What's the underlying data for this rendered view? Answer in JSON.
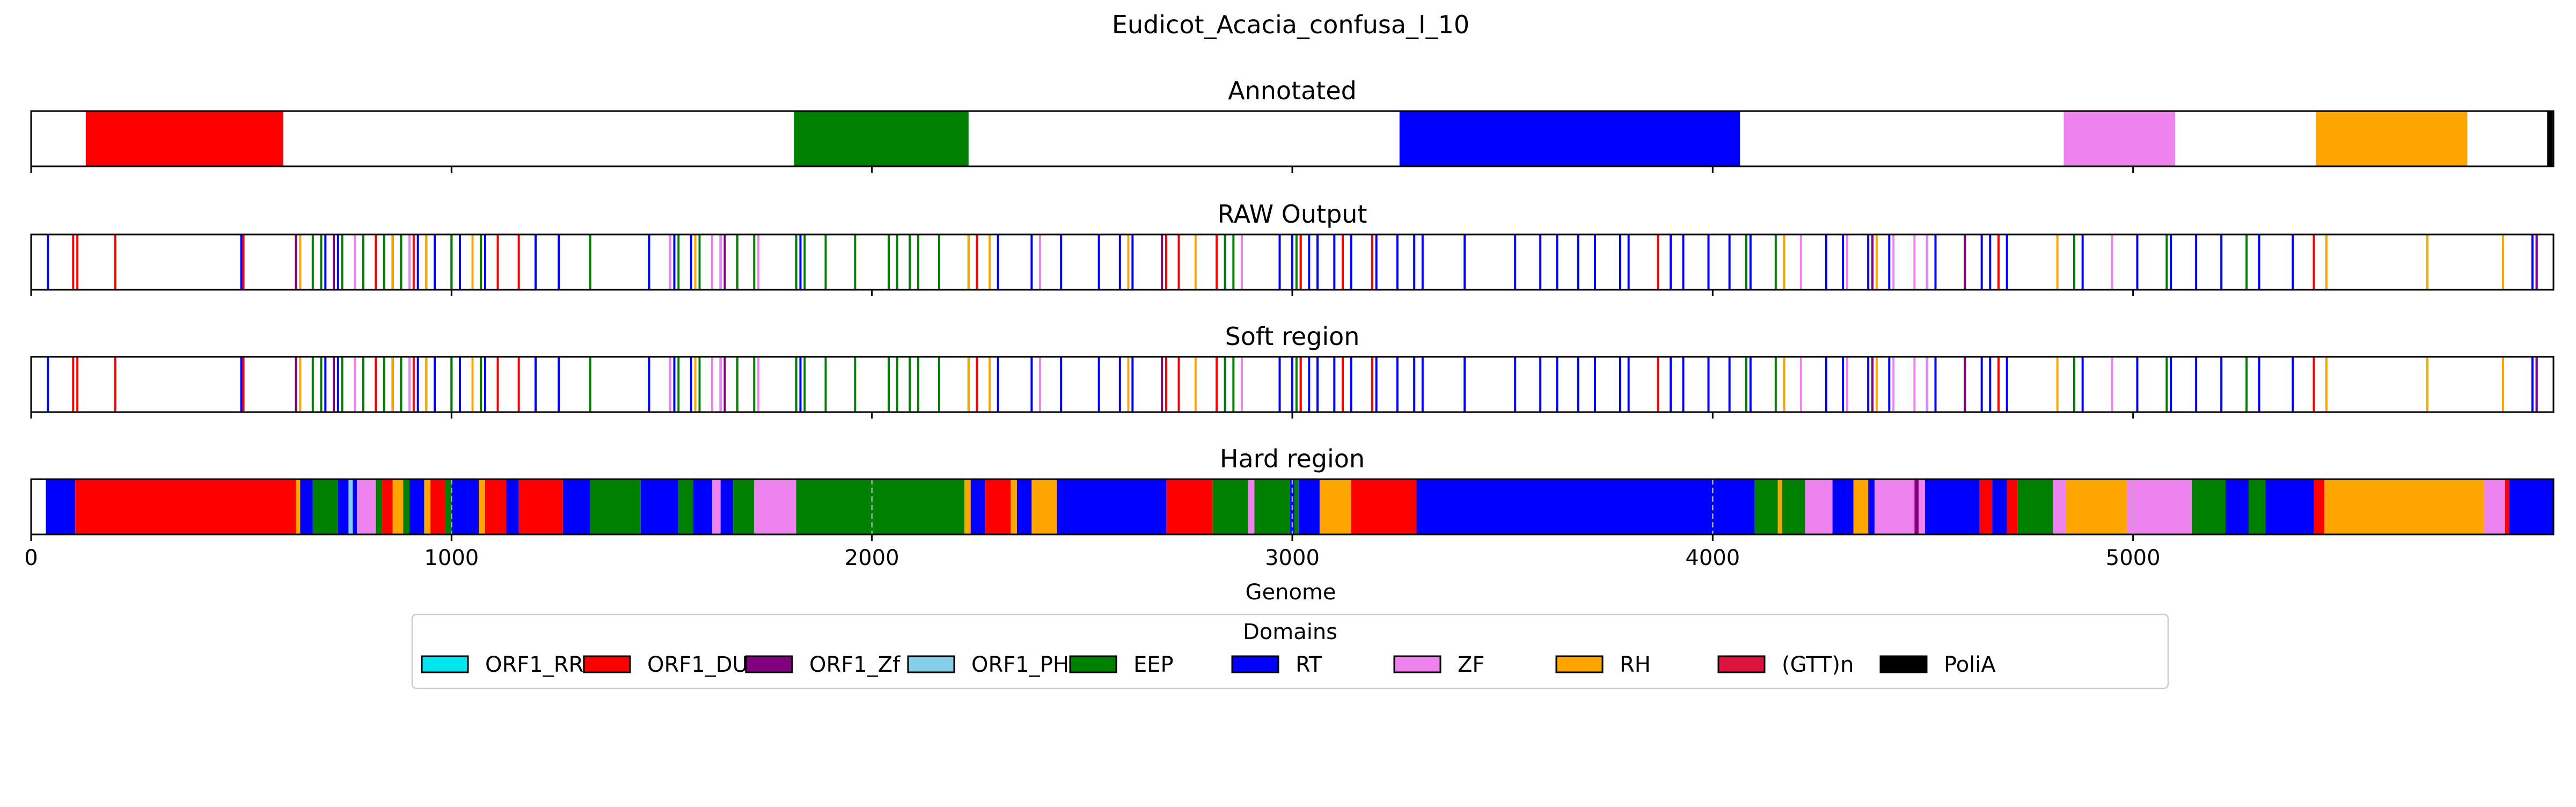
{
  "chart_data": {
    "type": "genome_track",
    "title": "Eudicot_Acacia_confusa_I_10",
    "xlabel": "Genome",
    "xlim": [
      0,
      6000
    ],
    "xticks": [
      "0",
      "1000",
      "2000",
      "3000",
      "4000",
      "5000"
    ],
    "tick_values": [
      0,
      1000,
      2000,
      3000,
      4000,
      5000
    ],
    "legend": {
      "title": "Domains",
      "placement": "bottom-center",
      "entries": [
        {
          "label": "ORF1_RRM",
          "color": "#00e5ee"
        },
        {
          "label": "ORF1_DUF",
          "color": "#ff0000"
        },
        {
          "label": "ORF1_Zf",
          "color": "#800080"
        },
        {
          "label": "ORF1_PHA",
          "color": "#87ceeb"
        },
        {
          "label": "EEP",
          "color": "#008000"
        },
        {
          "label": "RT",
          "color": "#0000ff"
        },
        {
          "label": "ZF",
          "color": "#ee82ee"
        },
        {
          "label": "RH",
          "color": "#ffa500"
        },
        {
          "label": "(GTT)n",
          "color": "#dc143c"
        },
        {
          "label": "PoliA",
          "color": "#000000"
        }
      ]
    },
    "panels": [
      {
        "title": "Annotated",
        "show_ticks": true,
        "segments": [
          {
            "domain": "ORF1_DUF",
            "start": 130,
            "end": 600
          },
          {
            "domain": "EEP",
            "start": 1815,
            "end": 2230
          },
          {
            "domain": "RT",
            "start": 3255,
            "end": 4065
          },
          {
            "domain": "ZF",
            "start": 4835,
            "end": 5100
          },
          {
            "domain": "RH",
            "start": 5435,
            "end": 5795
          },
          {
            "domain": "PoliA",
            "start": 5985,
            "end": 5998
          }
        ]
      },
      {
        "title": "RAW Output",
        "show_ticks": true,
        "lines": [
          {
            "domain": "RT",
            "positions": [
              40,
              500,
              700,
              730,
              860,
              880,
              900,
              920,
              960,
              1020,
              1050,
              1080,
              1200,
              1255,
              1470,
              1520,
              1530,
              1570,
              1640,
              1830,
              2250,
              2300,
              2380,
              2450,
              2540,
              2590,
              2620,
              2840,
              2970,
              3000,
              3020,
              3040,
              3060,
              3100,
              3140,
              3200,
              3250,
              3290,
              3310,
              3410,
              3530,
              3590,
              3630,
              3680,
              3720,
              3780,
              3800,
              3900,
              3930,
              3990,
              4040,
              4090,
              4170,
              4270,
              4310,
              4370,
              4420,
              4510,
              4530,
              4640,
              4660,
              4700,
              4880,
              5010,
              5090,
              5150,
              5210,
              5300,
              5380,
              5430,
              5950,
              5960
            ]
          },
          {
            "domain": "ORF1_DUF",
            "positions": [
              100,
              110,
              200,
              505,
              720,
              820,
              860,
              910,
              1000,
              1070,
              1110,
              1160,
              2250,
              2700,
              2730,
              2820,
              3020,
              3120,
              3190,
              3870,
              4680,
              5430
            ]
          },
          {
            "domain": "EEP",
            "positions": [
              670,
              690,
              740,
              790,
              840,
              880,
              900,
              940,
              1000,
              1070,
              1330,
              1540,
              1590,
              1680,
              1720,
              1820,
              1840,
              1890,
              1960,
              2040,
              2060,
              2090,
              2110,
              2160,
              2230,
              2840,
              2860,
              3010,
              4080,
              4150,
              4600,
              4860,
              5080,
              5270
            ]
          },
          {
            "domain": "ZF",
            "positions": [
              770,
              900,
              1520,
              1620,
              1640,
              1730,
              2400,
              2880,
              4210,
              4320,
              4430,
              4480,
              4510,
              4950
            ]
          },
          {
            "domain": "RH",
            "positions": [
              640,
              860,
              940,
              1050,
              1580,
              2230,
              2280,
              2610,
              2770,
              4170,
              4390,
              4820,
              5460,
              5700,
              5880
            ]
          },
          {
            "domain": "ORF1_Zf",
            "positions": [
              630,
              720,
              1650,
              2690,
              4380,
              4600,
              5960
            ]
          }
        ]
      },
      {
        "title": "Soft region",
        "show_ticks": true,
        "lines": [
          {
            "domain": "RT",
            "positions": [
              40,
              500,
              700,
              730,
              860,
              880,
              900,
              920,
              960,
              1020,
              1050,
              1080,
              1200,
              1255,
              1470,
              1520,
              1530,
              1570,
              1640,
              1830,
              2250,
              2300,
              2380,
              2450,
              2540,
              2590,
              2620,
              2840,
              2970,
              3000,
              3020,
              3040,
              3060,
              3100,
              3140,
              3200,
              3250,
              3290,
              3310,
              3410,
              3530,
              3590,
              3630,
              3680,
              3720,
              3780,
              3800,
              3900,
              3930,
              3990,
              4040,
              4090,
              4170,
              4270,
              4310,
              4370,
              4420,
              4510,
              4530,
              4640,
              4660,
              4700,
              4880,
              5010,
              5090,
              5150,
              5210,
              5300,
              5380,
              5430,
              5950,
              5960
            ]
          },
          {
            "domain": "ORF1_DUF",
            "positions": [
              100,
              110,
              200,
              505,
              720,
              820,
              860,
              910,
              1000,
              1070,
              1110,
              1160,
              2250,
              2700,
              2730,
              2820,
              3020,
              3120,
              3190,
              3870,
              4680,
              5430
            ]
          },
          {
            "domain": "EEP",
            "positions": [
              670,
              690,
              740,
              790,
              840,
              880,
              900,
              940,
              1000,
              1070,
              1330,
              1540,
              1590,
              1680,
              1720,
              1820,
              1840,
              1890,
              1960,
              2040,
              2060,
              2090,
              2110,
              2160,
              2230,
              2840,
              2860,
              3010,
              4080,
              4150,
              4600,
              4860,
              5080,
              5270
            ]
          },
          {
            "domain": "ZF",
            "positions": [
              770,
              900,
              1520,
              1620,
              1640,
              1730,
              2400,
              2880,
              4210,
              4320,
              4430,
              4480,
              4510,
              4950
            ]
          },
          {
            "domain": "RH",
            "positions": [
              640,
              860,
              940,
              1050,
              1580,
              2230,
              2280,
              2610,
              2770,
              4170,
              4390,
              4820,
              5460,
              5700,
              5880
            ]
          },
          {
            "domain": "ORF1_Zf",
            "positions": [
              630,
              720,
              1650,
              2690,
              4380,
              4600,
              5960
            ]
          }
        ]
      },
      {
        "title": "Hard region",
        "show_ticks": true,
        "grid": "x",
        "segments": [
          {
            "domain": "RT",
            "start": 35,
            "end": 105
          },
          {
            "domain": "ORF1_DUF",
            "start": 105,
            "end": 630
          },
          {
            "domain": "RH",
            "start": 630,
            "end": 640
          },
          {
            "domain": "RT",
            "start": 640,
            "end": 670
          },
          {
            "domain": "EEP",
            "start": 670,
            "end": 730
          },
          {
            "domain": "RT",
            "start": 730,
            "end": 755
          },
          {
            "domain": "ORF1_PHA",
            "start": 755,
            "end": 765
          },
          {
            "domain": "RT",
            "start": 765,
            "end": 775
          },
          {
            "domain": "ZF",
            "start": 775,
            "end": 820
          },
          {
            "domain": "EEP",
            "start": 820,
            "end": 835
          },
          {
            "domain": "ORF1_DUF",
            "start": 835,
            "end": 860
          },
          {
            "domain": "RH",
            "start": 860,
            "end": 885
          },
          {
            "domain": "EEP",
            "start": 885,
            "end": 900
          },
          {
            "domain": "RT",
            "start": 900,
            "end": 935
          },
          {
            "domain": "RH",
            "start": 935,
            "end": 950
          },
          {
            "domain": "ORF1_DUF",
            "start": 950,
            "end": 985
          },
          {
            "domain": "EEP",
            "start": 985,
            "end": 1000
          },
          {
            "domain": "RT",
            "start": 1000,
            "end": 1065
          },
          {
            "domain": "RH",
            "start": 1065,
            "end": 1080
          },
          {
            "domain": "ORF1_DUF",
            "start": 1080,
            "end": 1130
          },
          {
            "domain": "RT",
            "start": 1130,
            "end": 1160
          },
          {
            "domain": "ORF1_DUF",
            "start": 1160,
            "end": 1265
          },
          {
            "domain": "RT",
            "start": 1265,
            "end": 1330
          },
          {
            "domain": "EEP",
            "start": 1330,
            "end": 1450
          },
          {
            "domain": "RT",
            "start": 1450,
            "end": 1540
          },
          {
            "domain": "EEP",
            "start": 1540,
            "end": 1575
          },
          {
            "domain": "RT",
            "start": 1575,
            "end": 1620
          },
          {
            "domain": "ZF",
            "start": 1620,
            "end": 1640
          },
          {
            "domain": "RT",
            "start": 1640,
            "end": 1670
          },
          {
            "domain": "EEP",
            "start": 1670,
            "end": 1720
          },
          {
            "domain": "ZF",
            "start": 1720,
            "end": 1820
          },
          {
            "domain": "EEP",
            "start": 1820,
            "end": 2220
          },
          {
            "domain": "RH",
            "start": 2220,
            "end": 2235
          },
          {
            "domain": "RT",
            "start": 2235,
            "end": 2270
          },
          {
            "domain": "ORF1_DUF",
            "start": 2270,
            "end": 2330
          },
          {
            "domain": "RH",
            "start": 2330,
            "end": 2345
          },
          {
            "domain": "RT",
            "start": 2345,
            "end": 2380
          },
          {
            "domain": "RH",
            "start": 2380,
            "end": 2440
          },
          {
            "domain": "RT",
            "start": 2440,
            "end": 2700
          },
          {
            "domain": "ORF1_DUF",
            "start": 2700,
            "end": 2810
          },
          {
            "domain": "EEP",
            "start": 2810,
            "end": 2895
          },
          {
            "domain": "ZF",
            "start": 2895,
            "end": 2910
          },
          {
            "domain": "EEP",
            "start": 2910,
            "end": 2995
          },
          {
            "domain": "RT",
            "start": 2995,
            "end": 3005
          },
          {
            "domain": "EEP",
            "start": 3005,
            "end": 3015
          },
          {
            "domain": "RT",
            "start": 3015,
            "end": 3065
          },
          {
            "domain": "RH",
            "start": 3065,
            "end": 3140
          },
          {
            "domain": "ORF1_DUF",
            "start": 3140,
            "end": 3295
          },
          {
            "domain": "RT",
            "start": 3295,
            "end": 4100
          },
          {
            "domain": "EEP",
            "start": 4100,
            "end": 4155
          },
          {
            "domain": "RH",
            "start": 4155,
            "end": 4165
          },
          {
            "domain": "EEP",
            "start": 4165,
            "end": 4220
          },
          {
            "domain": "ZF",
            "start": 4220,
            "end": 4285
          },
          {
            "domain": "RT",
            "start": 4285,
            "end": 4335
          },
          {
            "domain": "RH",
            "start": 4335,
            "end": 4370
          },
          {
            "domain": "RT",
            "start": 4370,
            "end": 4385
          },
          {
            "domain": "ZF",
            "start": 4385,
            "end": 4480
          },
          {
            "domain": "ORF1_Zf",
            "start": 4480,
            "end": 4490
          },
          {
            "domain": "ZF",
            "start": 4490,
            "end": 4505
          },
          {
            "domain": "RT",
            "start": 4505,
            "end": 4635
          },
          {
            "domain": "ORF1_DUF",
            "start": 4635,
            "end": 4665
          },
          {
            "domain": "RT",
            "start": 4665,
            "end": 4700
          },
          {
            "domain": "ORF1_DUF",
            "start": 4700,
            "end": 4725
          },
          {
            "domain": "EEP",
            "start": 4725,
            "end": 4810
          },
          {
            "domain": "ZF",
            "start": 4810,
            "end": 4840
          },
          {
            "domain": "RH",
            "start": 4840,
            "end": 4985
          },
          {
            "domain": "ZF",
            "start": 4985,
            "end": 5140
          },
          {
            "domain": "EEP",
            "start": 5140,
            "end": 5220
          },
          {
            "domain": "RT",
            "start": 5220,
            "end": 5275
          },
          {
            "domain": "EEP",
            "start": 5275,
            "end": 5315
          },
          {
            "domain": "RT",
            "start": 5315,
            "end": 5430
          },
          {
            "domain": "ORF1_DUF",
            "start": 5430,
            "end": 5455
          },
          {
            "domain": "RH",
            "start": 5455,
            "end": 5835
          },
          {
            "domain": "ZF",
            "start": 5835,
            "end": 5885
          },
          {
            "domain": "ORF1_DUF",
            "start": 5885,
            "end": 5895
          },
          {
            "domain": "RT",
            "start": 5895,
            "end": 6000
          }
        ]
      }
    ]
  }
}
